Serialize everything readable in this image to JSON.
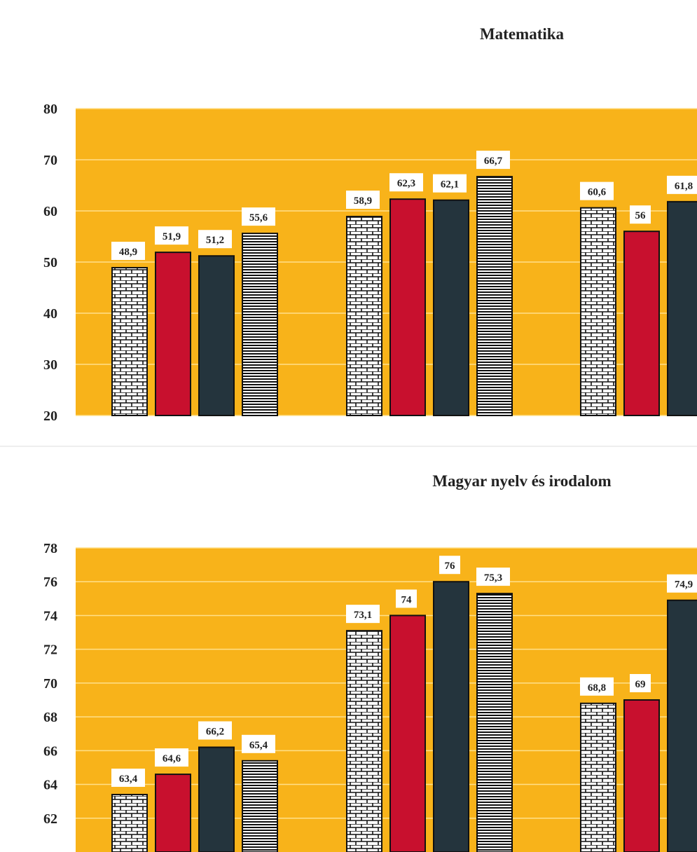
{
  "chart_data": [
    {
      "type": "bar",
      "title": "Matematika",
      "ylim": [
        20,
        80
      ],
      "yticks": [
        20,
        30,
        40,
        50,
        60,
        70,
        80
      ],
      "grid": true,
      "background_color": "#F8B31A",
      "series_styles": [
        {
          "pattern": "brick",
          "color": "#ffffff"
        },
        {
          "pattern": "solid",
          "color": "#C8102E"
        },
        {
          "pattern": "solid",
          "color": "#24343D"
        },
        {
          "pattern": "hstripe",
          "color": "#ffffff"
        }
      ],
      "groups": [
        {
          "values": [
            48.9,
            51.9,
            51.2,
            55.6
          ],
          "labels": [
            "48,9",
            "51,9",
            "51,2",
            "55,6"
          ]
        },
        {
          "values": [
            58.9,
            62.3,
            62.1,
            66.7
          ],
          "labels": [
            "58,9",
            "62,3",
            "62,1",
            "66,7"
          ]
        },
        {
          "values": [
            60.6,
            56,
            61.8
          ],
          "labels": [
            "60,6",
            "56",
            "61,8"
          ]
        }
      ]
    },
    {
      "type": "bar",
      "title": "Magyar nyelv és irodalom",
      "ylim": [
        60,
        78
      ],
      "yticks": [
        62,
        64,
        66,
        68,
        70,
        72,
        74,
        76,
        78
      ],
      "grid": true,
      "background_color": "#F8B31A",
      "series_styles": [
        {
          "pattern": "brick",
          "color": "#ffffff"
        },
        {
          "pattern": "solid",
          "color": "#C8102E"
        },
        {
          "pattern": "solid",
          "color": "#24343D"
        },
        {
          "pattern": "hstripe",
          "color": "#ffffff"
        }
      ],
      "groups": [
        {
          "values": [
            63.4,
            64.6,
            66.2,
            65.4
          ],
          "labels": [
            "63,4",
            "64,6",
            "66,2",
            "65,4"
          ]
        },
        {
          "values": [
            73.1,
            74,
            76,
            75.3
          ],
          "labels": [
            "73,1",
            "74",
            "76",
            "75,3"
          ]
        },
        {
          "values": [
            68.8,
            69,
            74.9
          ],
          "labels": [
            "68,8",
            "69",
            "74,9"
          ]
        }
      ]
    }
  ]
}
